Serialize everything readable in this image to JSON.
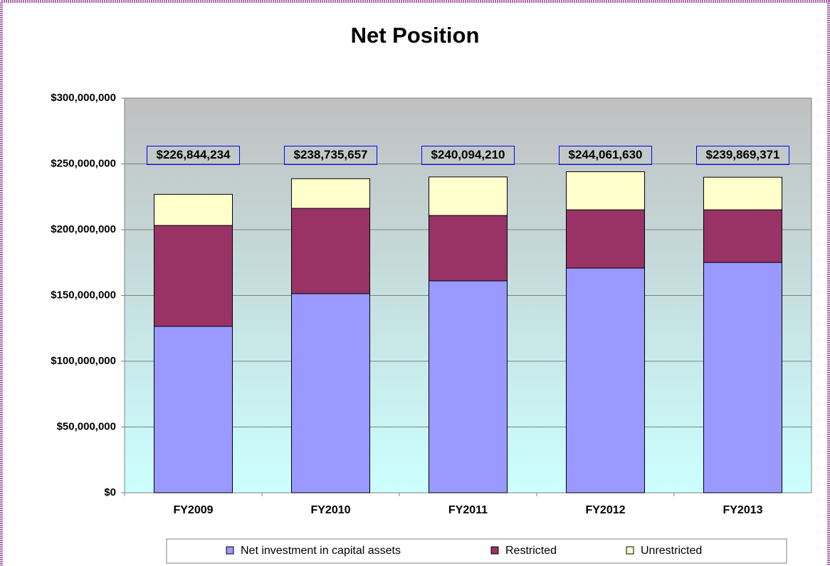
{
  "chart_data": {
    "type": "stacked_bar",
    "title": "Net Position",
    "categories": [
      "FY2009",
      "FY2010",
      "FY2011",
      "FY2012",
      "FY2013"
    ],
    "series": [
      {
        "name": "Net investment in capital assets",
        "color": "#9999ff",
        "values": [
          126500000,
          151400000,
          161100000,
          170800000,
          175100000
        ]
      },
      {
        "name": "Restricted",
        "color": "#993366",
        "values": [
          76700000,
          64800000,
          49700000,
          44300000,
          40000000
        ]
      },
      {
        "name": "Unrestricted",
        "color": "#ffffcc",
        "values": [
          23644234,
          22535657,
          29294210,
          28961630,
          24769371
        ]
      }
    ],
    "totals": [
      226844234,
      238735657,
      240094210,
      244061630,
      239869371
    ],
    "total_labels": [
      "$226,844,234",
      "$238,735,657",
      "$240,094,210",
      "$244,061,630",
      "$239,869,371"
    ],
    "ylim": [
      0,
      300000000
    ],
    "yticks": [
      {
        "value": 0,
        "label": "$0"
      },
      {
        "value": 50000000,
        "label": "$50,000,000"
      },
      {
        "value": 100000000,
        "label": "$100,000,000"
      },
      {
        "value": 150000000,
        "label": "$150,000,000"
      },
      {
        "value": 200000000,
        "label": "$200,000,000"
      },
      {
        "value": 250000000,
        "label": "$250,000,000"
      },
      {
        "value": 300000000,
        "label": "$300,000,000"
      }
    ],
    "grid": true,
    "legend": "bottom"
  }
}
